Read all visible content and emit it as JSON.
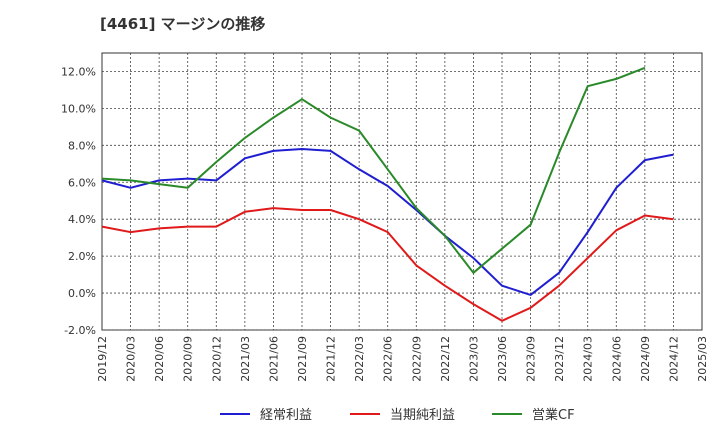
{
  "chart_data": {
    "type": "line",
    "title": "[4461]  マージンの推移",
    "x": [
      "2019/12",
      "2020/03",
      "2020/06",
      "2020/09",
      "2020/12",
      "2021/03",
      "2021/06",
      "2021/09",
      "2021/12",
      "2022/03",
      "2022/06",
      "2022/09",
      "2022/12",
      "2023/03",
      "2023/06",
      "2023/09",
      "2023/12",
      "2024/03",
      "2024/06",
      "2024/09",
      "2024/12",
      "2025/03"
    ],
    "ylim": [
      -2,
      13
    ],
    "yticks": [
      -2,
      0,
      2,
      4,
      6,
      8,
      10,
      12
    ],
    "ytick_labels": [
      "-2.0%",
      "0.0%",
      "2.0%",
      "4.0%",
      "6.0%",
      "8.0%",
      "10.0%",
      "12.0%"
    ],
    "grid": true,
    "legend_position": "bottom",
    "series": [
      {
        "name": "経常利益",
        "color": "#1f1fd1",
        "values": [
          6.1,
          5.7,
          6.1,
          6.2,
          6.1,
          7.3,
          7.7,
          7.8,
          7.7,
          6.7,
          5.8,
          4.5,
          3.1,
          1.9,
          0.4,
          -0.1,
          1.1,
          3.3,
          5.7,
          7.2,
          7.5,
          null
        ]
      },
      {
        "name": "当期純利益",
        "color": "#e01a1a",
        "values": [
          3.6,
          3.3,
          3.5,
          3.6,
          3.6,
          4.4,
          4.6,
          4.5,
          4.5,
          4.0,
          3.3,
          1.5,
          0.4,
          -0.6,
          -1.5,
          -0.8,
          0.4,
          1.9,
          3.4,
          4.2,
          4.0,
          null
        ]
      },
      {
        "name": "営業CF",
        "color": "#2a8a2a",
        "values": [
          6.2,
          6.1,
          5.9,
          5.7,
          7.1,
          8.4,
          9.5,
          10.5,
          9.5,
          8.8,
          6.7,
          4.6,
          3.1,
          1.1,
          2.4,
          3.7,
          7.6,
          11.2,
          11.6,
          12.2,
          null,
          null
        ]
      }
    ]
  }
}
